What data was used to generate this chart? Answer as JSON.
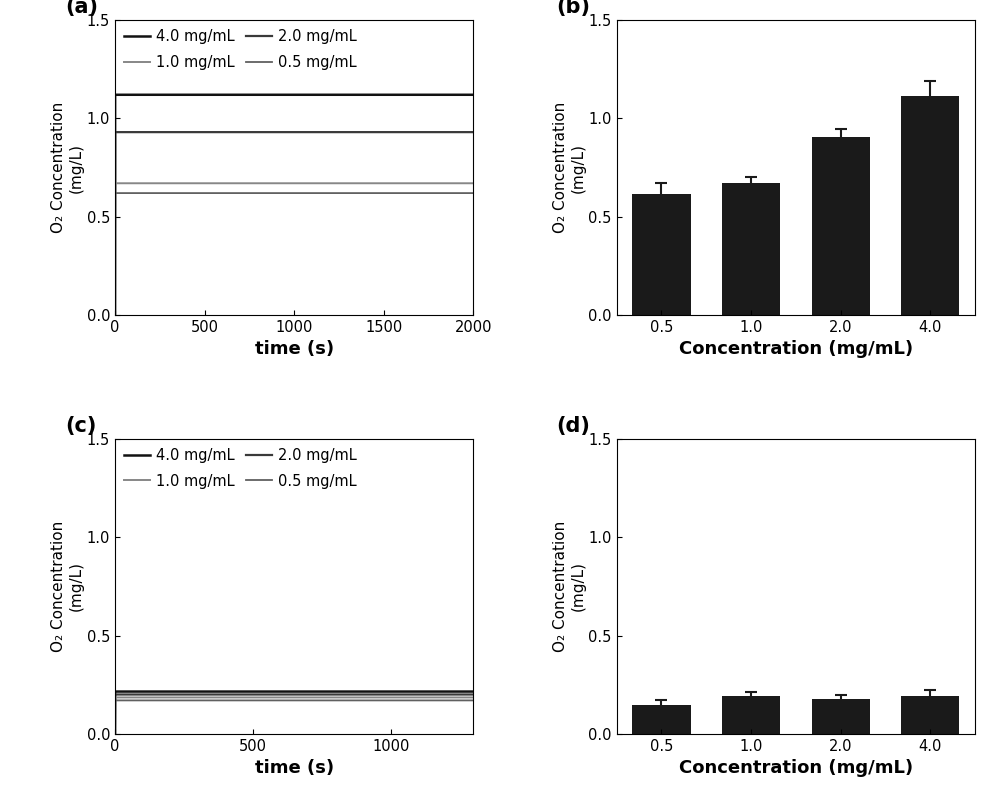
{
  "panel_a": {
    "label": "(a)",
    "curves": [
      {
        "label": "4.0 mg/mL",
        "color": "#111111",
        "lw": 1.8,
        "k": 0.0018,
        "n": 1.8,
        "ymax": 1.12
      },
      {
        "label": "2.0 mg/mL",
        "color": "#3a3a3a",
        "lw": 1.6,
        "k": 0.0013,
        "n": 1.8,
        "ymax": 0.93
      },
      {
        "label": "1.0 mg/mL",
        "color": "#878787",
        "lw": 1.4,
        "k": 0.001,
        "n": 1.8,
        "ymax": 0.67
      },
      {
        "label": "0.5 mg/mL",
        "color": "#606060",
        "lw": 1.3,
        "k": 0.00095,
        "n": 1.8,
        "ymax": 0.62
      }
    ],
    "xmax": 2000,
    "xlim": [
      0,
      2000
    ],
    "ylim": [
      0,
      1.5
    ],
    "xlabel": "time (s)",
    "ylabel": "O₂ Concentration\n(mg/L)",
    "xticks": [
      0,
      500,
      1000,
      1500,
      2000
    ],
    "yticks": [
      0.0,
      0.5,
      1.0,
      1.5
    ]
  },
  "panel_b": {
    "label": "(b)",
    "categories": [
      "0.5",
      "1.0",
      "2.0",
      "4.0"
    ],
    "values": [
      0.615,
      0.67,
      0.905,
      1.115
    ],
    "errors": [
      0.055,
      0.032,
      0.042,
      0.075
    ],
    "bar_color": "#1a1a1a",
    "ylim": [
      0,
      1.5
    ],
    "xlim": [
      -0.5,
      3.5
    ],
    "xlabel": "Concentration (mg/mL)",
    "ylabel": "O₂ Concentration\n(mg/L)",
    "yticks": [
      0.0,
      0.5,
      1.0,
      1.5
    ]
  },
  "panel_c": {
    "label": "(c)",
    "curves": [
      {
        "label": "4.0 mg/mL",
        "color": "#111111",
        "lw": 1.8,
        "k": 0.00055,
        "n": 1.6,
        "ymax": 0.215
      },
      {
        "label": "2.0 mg/mL",
        "color": "#3a3a3a",
        "lw": 1.6,
        "k": 0.0005,
        "n": 1.6,
        "ymax": 0.2
      },
      {
        "label": "1.0 mg/mL",
        "color": "#878787",
        "lw": 1.4,
        "k": 0.00045,
        "n": 1.6,
        "ymax": 0.185
      },
      {
        "label": "0.5 mg/mL",
        "color": "#606060",
        "lw": 1.3,
        "k": 0.0004,
        "n": 1.6,
        "ymax": 0.17
      }
    ],
    "xmax": 1300,
    "xlim": [
      0,
      1300
    ],
    "ylim": [
      0,
      1.5
    ],
    "xlabel": "time (s)",
    "ylabel": "O₂ Concentration\n(mg/L)",
    "xticks": [
      0,
      500,
      1000
    ],
    "yticks": [
      0.0,
      0.5,
      1.0,
      1.5
    ]
  },
  "panel_d": {
    "label": "(d)",
    "categories": [
      "0.5",
      "1.0",
      "2.0",
      "4.0"
    ],
    "values": [
      0.145,
      0.19,
      0.175,
      0.19
    ],
    "errors": [
      0.028,
      0.022,
      0.022,
      0.032
    ],
    "bar_color": "#1a1a1a",
    "ylim": [
      0,
      1.5
    ],
    "xlim": [
      -0.5,
      3.5
    ],
    "xlabel": "Concentration (mg/mL)",
    "ylabel": "O₂ Concentration\n(mg/L)",
    "yticks": [
      0.0,
      0.5,
      1.0,
      1.5
    ]
  },
  "bg_color": "#ffffff",
  "font_size": 11,
  "label_font_size": 13,
  "tick_font_size": 10.5
}
